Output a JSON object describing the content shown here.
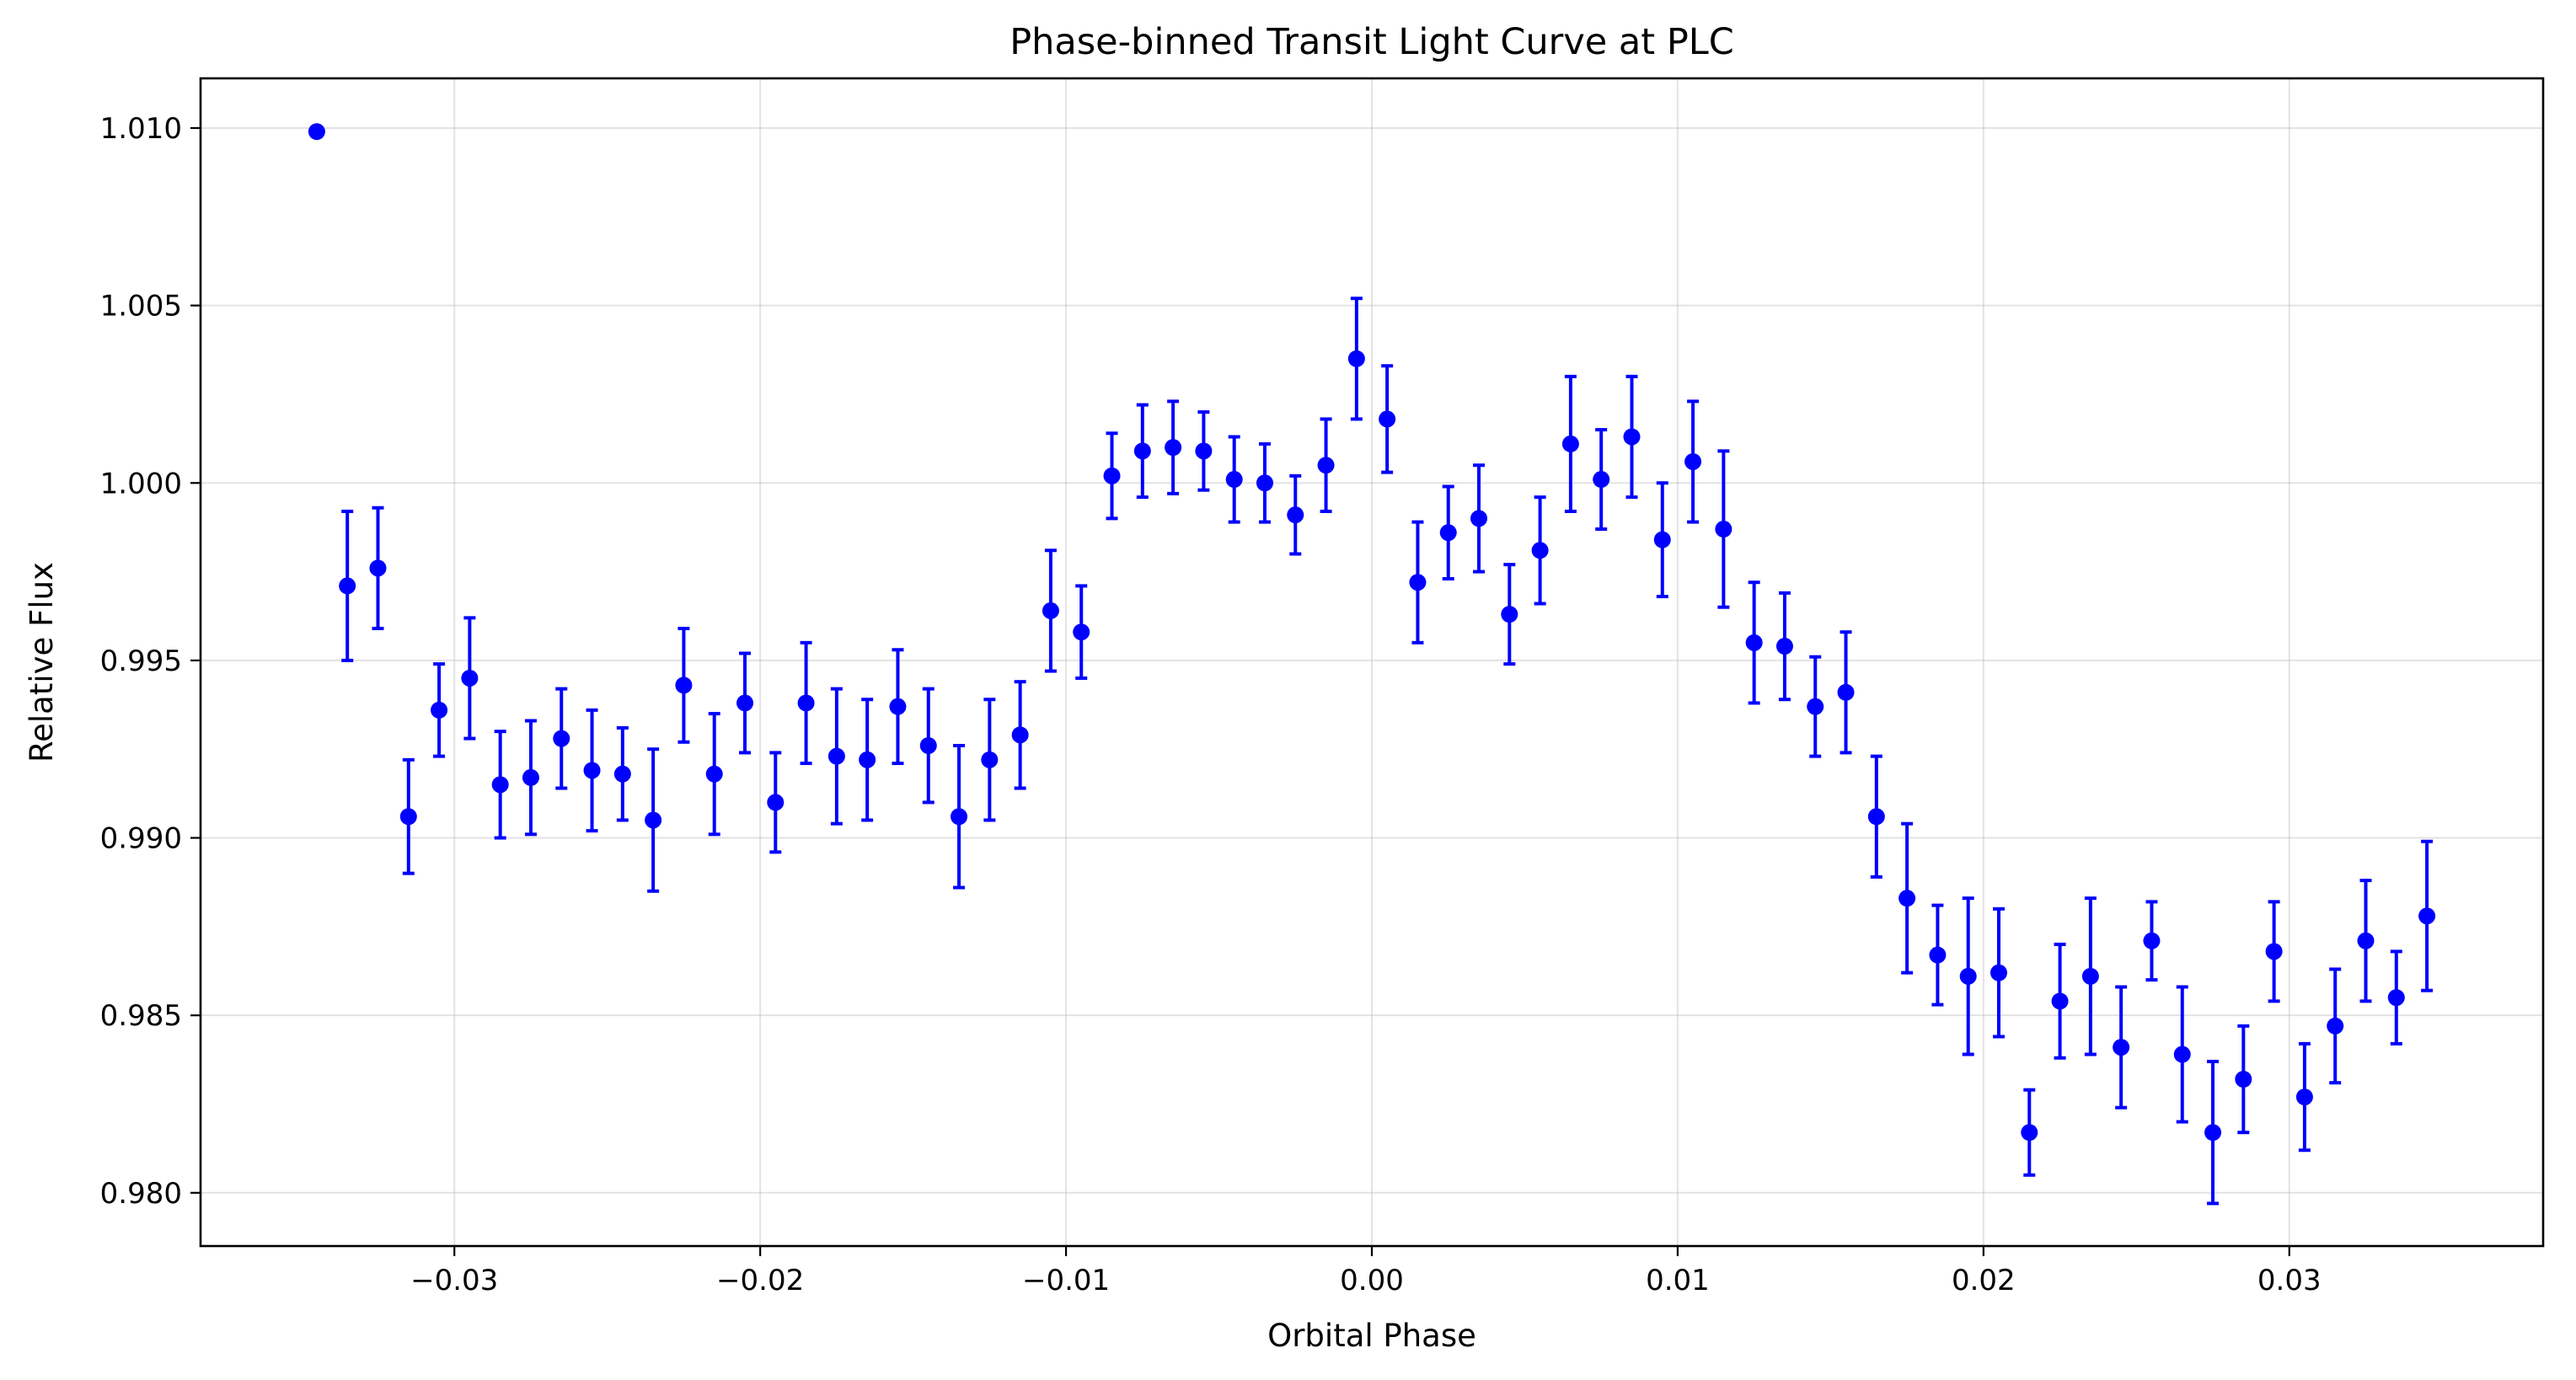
{
  "chart_data": {
    "type": "scatter",
    "title": "Phase-binned Transit Light Curve at PLC",
    "xlabel": "Orbital Phase",
    "ylabel": "Relative Flux",
    "xlim": [
      -0.0383,
      0.0383
    ],
    "ylim": [
      0.9785,
      1.0114
    ],
    "xticks": [
      -0.03,
      -0.02,
      -0.01,
      0.0,
      0.01,
      0.02,
      0.03
    ],
    "xtick_labels": [
      "−0.03",
      "−0.02",
      "−0.01",
      "0.00",
      "0.01",
      "0.02",
      "0.03"
    ],
    "yticks": [
      0.98,
      0.985,
      0.99,
      0.995,
      1.0,
      1.005,
      1.01
    ],
    "ytick_labels": [
      "0.980",
      "0.985",
      "0.990",
      "0.995",
      "1.000",
      "1.005",
      "1.010"
    ],
    "grid": true,
    "color": "#0000ff",
    "series": [
      {
        "x": [
          -0.0345,
          -0.0335,
          -0.0325,
          -0.0315,
          -0.0305,
          -0.0295,
          -0.0285,
          -0.0275,
          -0.0265,
          -0.0255,
          -0.0245,
          -0.0235,
          -0.0225,
          -0.0215,
          -0.0205,
          -0.0195,
          -0.0185,
          -0.0175,
          -0.0165,
          -0.0155,
          -0.0145,
          -0.0135,
          -0.0125,
          -0.0115,
          -0.0105,
          -0.0095,
          -0.0085,
          -0.0075,
          -0.0065,
          -0.0055,
          -0.0045,
          -0.0035,
          -0.0025,
          -0.0015,
          -0.0005,
          0.0005,
          0.0015,
          0.0025,
          0.0035,
          0.0045,
          0.0055,
          0.0065,
          0.0075,
          0.0085,
          0.0095,
          0.0105,
          0.0115,
          0.0125,
          0.0135,
          0.0145,
          0.0155,
          0.0165,
          0.0175,
          0.0185,
          0.0195,
          0.0205,
          0.0215,
          0.0225,
          0.0235,
          0.0245,
          0.0255,
          0.0265,
          0.0275,
          0.0285,
          0.0295,
          0.0305,
          0.0315,
          0.0325,
          0.0335,
          0.0345
        ],
        "y": [
          1.0099,
          0.9971,
          0.9976,
          0.9906,
          0.9936,
          0.9945,
          0.9915,
          0.9917,
          0.9928,
          0.9919,
          0.9918,
          0.9905,
          0.9943,
          0.9918,
          0.9938,
          0.991,
          0.9938,
          0.9923,
          0.9922,
          0.9937,
          0.9926,
          0.9906,
          0.9922,
          0.9929,
          0.9964,
          0.9958,
          1.0002,
          1.0009,
          1.001,
          1.0009,
          1.0001,
          1.0,
          0.9991,
          1.0005,
          1.0035,
          1.0018,
          0.9972,
          0.9986,
          0.999,
          0.9963,
          0.9981,
          1.0011,
          1.0001,
          1.0013,
          0.9984,
          1.0006,
          0.9987,
          0.9955,
          0.9954,
          0.9937,
          0.9941,
          0.9906,
          0.9883,
          0.9867,
          0.9861,
          0.9862,
          0.9817,
          0.9854,
          0.9861,
          0.9841,
          0.9871,
          0.9839,
          0.9817,
          0.9832,
          0.9868,
          0.9827,
          0.9847,
          0.9871,
          0.9855,
          0.9878
        ],
        "yerr": [
          0.0,
          0.0021,
          0.0017,
          0.0016,
          0.0013,
          0.0017,
          0.0015,
          0.0016,
          0.0014,
          0.0017,
          0.0013,
          0.002,
          0.0016,
          0.0017,
          0.0014,
          0.0014,
          0.0017,
          0.0019,
          0.0017,
          0.0016,
          0.0016,
          0.002,
          0.0017,
          0.0015,
          0.0017,
          0.0013,
          0.0012,
          0.0013,
          0.0013,
          0.0011,
          0.0012,
          0.0011,
          0.0011,
          0.0013,
          0.0017,
          0.0015,
          0.0017,
          0.0013,
          0.0015,
          0.0014,
          0.0015,
          0.0019,
          0.0014,
          0.0017,
          0.0016,
          0.0017,
          0.0022,
          0.0017,
          0.0015,
          0.0014,
          0.0017,
          0.0017,
          0.0021,
          0.0014,
          0.0022,
          0.0018,
          0.0012,
          0.0016,
          0.0022,
          0.0017,
          0.0011,
          0.0019,
          0.002,
          0.0015,
          0.0014,
          0.0015,
          0.0016,
          0.0017,
          0.0013,
          0.0021
        ]
      }
    ]
  }
}
